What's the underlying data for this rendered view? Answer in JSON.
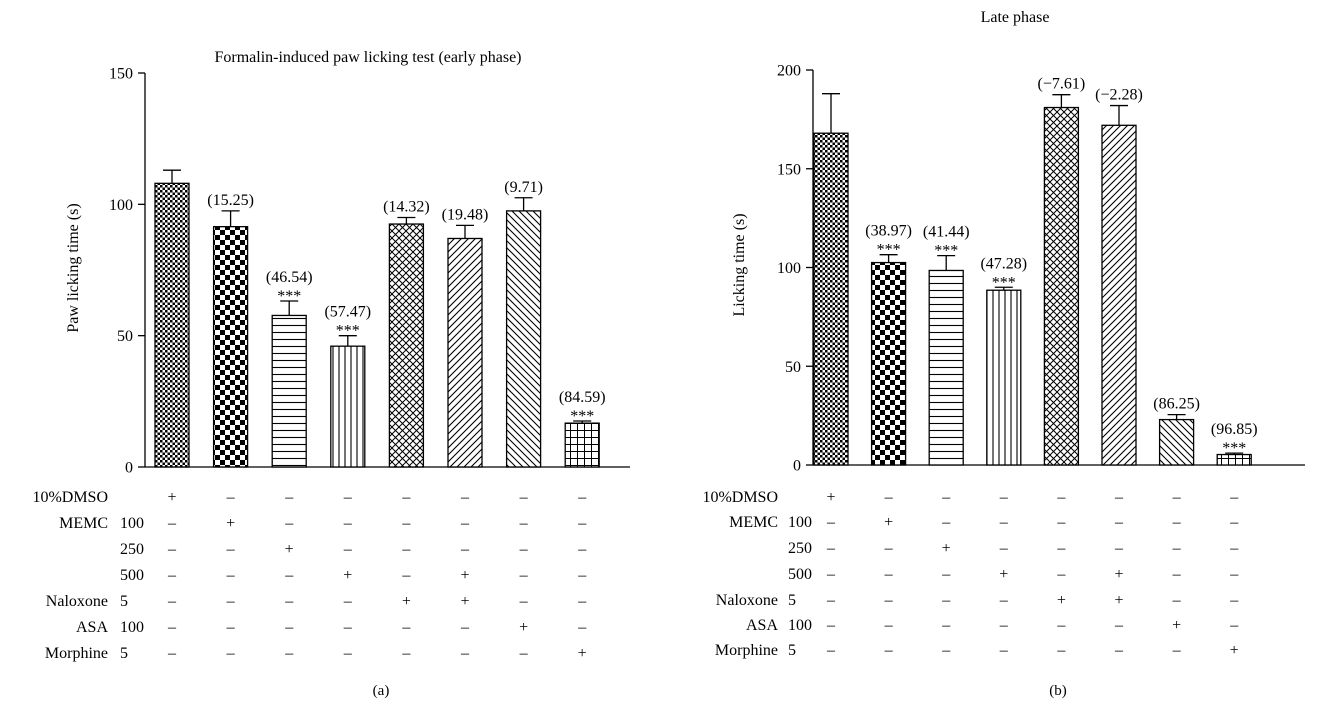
{
  "chart_data": [
    {
      "type": "bar",
      "panel_label": "(a)",
      "title": "Formalin-induced paw licking test (early phase)",
      "ylabel": "Paw licking time (s)",
      "ylim": [
        0,
        150
      ],
      "yticks": [
        0,
        50,
        100,
        150
      ],
      "values": [
        108,
        91.5,
        57.7,
        46,
        92.5,
        87,
        97.5,
        16.7
      ],
      "errors": [
        5,
        6,
        5.5,
        4,
        2.5,
        5,
        5,
        0.8
      ],
      "annotations": [
        "",
        "(15.25)",
        "(46.54)",
        "(57.47)",
        "(14.32)",
        "(19.48)",
        "(9.71)",
        "(84.59)"
      ],
      "significance": [
        "",
        "",
        "***",
        "***",
        "",
        "",
        "",
        "***"
      ],
      "patterns": [
        "fine-check",
        "check",
        "hlines",
        "vlines",
        "crosshatch",
        "diag-right",
        "diag-left",
        "grid"
      ]
    },
    {
      "type": "bar",
      "panel_label": "(b)",
      "title": "Late phase",
      "ylabel": "Licking time (s)",
      "ylim": [
        0,
        200
      ],
      "yticks": [
        0,
        50,
        100,
        150,
        200
      ],
      "values": [
        168,
        102.5,
        98.5,
        88.5,
        181,
        172,
        23,
        5.3
      ],
      "errors": [
        20,
        4,
        7.5,
        1.5,
        6.5,
        10,
        2.5,
        0.7
      ],
      "annotations": [
        "",
        "(38.97)",
        "(41.44)",
        "(47.28)",
        "(−7.61)",
        "(−2.28)",
        "(86.25)",
        "(96.85)"
      ],
      "significance": [
        "",
        "***",
        "***",
        "***",
        "",
        "",
        "",
        "***"
      ],
      "patterns": [
        "fine-check",
        "check",
        "hlines",
        "vlines",
        "crosshatch",
        "diag-right",
        "diag-left",
        "grid"
      ]
    }
  ],
  "treatment_table": {
    "rows": [
      {
        "drug": "10%DMSO",
        "dose": "",
        "marks": [
          "+",
          "–",
          "–",
          "–",
          "–",
          "–",
          "–",
          "–"
        ]
      },
      {
        "drug": "MEMC",
        "dose": "100",
        "marks": [
          "–",
          "+",
          "–",
          "–",
          "–",
          "–",
          "–",
          "–"
        ]
      },
      {
        "drug": "",
        "dose": "250",
        "marks": [
          "–",
          "–",
          "+",
          "–",
          "–",
          "–",
          "–",
          "–"
        ]
      },
      {
        "drug": "",
        "dose": "500",
        "marks": [
          "–",
          "–",
          "–",
          "+",
          "–",
          "+",
          "–",
          "–"
        ]
      },
      {
        "drug": "Naloxone",
        "dose": "5",
        "marks": [
          "–",
          "–",
          "–",
          "–",
          "+",
          "+",
          "–",
          "–"
        ]
      },
      {
        "drug": "ASA",
        "dose": "100",
        "marks": [
          "–",
          "–",
          "–",
          "–",
          "–",
          "–",
          "+",
          "–"
        ]
      },
      {
        "drug": "Morphine",
        "dose": "5",
        "marks": [
          "–",
          "–",
          "–",
          "–",
          "–",
          "–",
          "–",
          "+"
        ]
      }
    ]
  }
}
